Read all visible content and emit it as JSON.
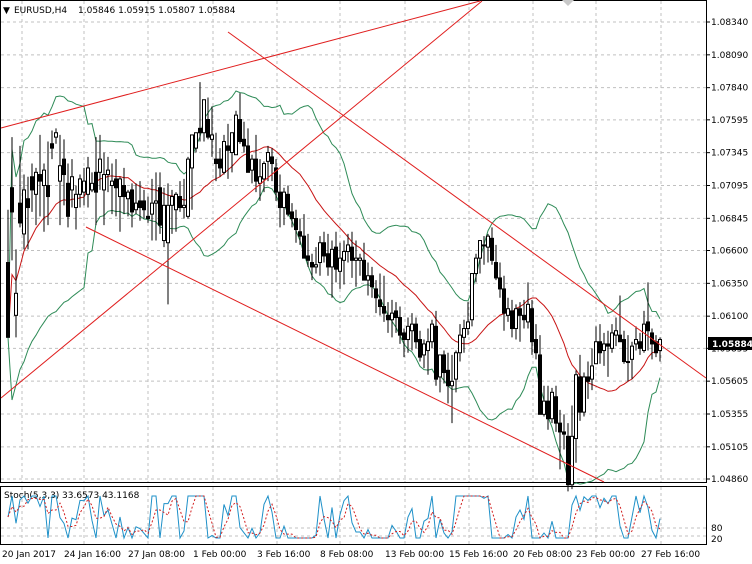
{
  "header": {
    "symbol_timeframe": "EURUSD,H4",
    "ohlc": "1.05846 1.05915 1.05807 1.05884"
  },
  "indicator": {
    "label": "Stoch(5,3,3)",
    "values": "33.6573 43.1168",
    "levels": [
      "80",
      "20"
    ]
  },
  "price_axis": {
    "labels": [
      "1.08340",
      "1.08090",
      "1.07840",
      "1.07595",
      "1.07345",
      "1.07095",
      "1.06845",
      "1.06600",
      "1.06350",
      "1.06100",
      "1.05855",
      "1.05605",
      "1.05355",
      "1.05105",
      "1.04860"
    ],
    "current_price": "1.05884"
  },
  "time_axis": {
    "labels": [
      "20 Jan 2017",
      "24 Jan 16:00",
      "27 Jan 08:00",
      "1 Feb 00:00",
      "3 Feb 16:00",
      "8 Feb 08:00",
      "13 Feb 00:00",
      "15 Feb 16:00",
      "20 Feb 08:00",
      "23 Feb 00:00",
      "27 Feb 16:00"
    ]
  },
  "colors": {
    "background": "#ffffff",
    "grid": "#c0c0c0",
    "candle": "#000000",
    "bollinger": "#2e8b57",
    "moving_average": "#c81414",
    "channel": "#e01e1e",
    "stoch_main": "#1e90c8",
    "stoch_signal": "#d21e1e",
    "price_badge": "#000000"
  },
  "chart_data": {
    "type": "candlestick",
    "symbol": "EURUSD",
    "timeframe": "H4",
    "ylim": [
      1.0484,
      1.0846
    ],
    "price_guides": {
      "candle_rows": [
        [
          0,
          39,
          63,
          9,
          5
        ],
        [
          4,
          73,
          96,
          40,
          62
        ],
        [
          8,
          15,
          45,
          5,
          25
        ],
        [
          12,
          66,
          92,
          55,
          57
        ],
        [
          16,
          52,
          79,
          45,
          72
        ],
        [
          20,
          68,
          78,
          45,
          64
        ],
        [
          24,
          78,
          84,
          62,
          72
        ],
        [
          28,
          70,
          82,
          56,
          80
        ],
        [
          32,
          79,
          97,
          60,
          76
        ],
        [
          36,
          74,
          84,
          53,
          81
        ],
        [
          40,
          74,
          94,
          56,
          69
        ],
        [
          44,
          93,
          99,
          86,
          91
        ],
        [
          48,
          96,
          100,
          93,
          98
        ],
        [
          52,
          76,
          97,
          56,
          83
        ],
        [
          56,
          86,
          95,
          65,
          79
        ],
        [
          60,
          75,
          84,
          55,
          60
        ],
        [
          64,
          72,
          86,
          64,
          78
        ],
        [
          68,
          64,
          74,
          54,
          70
        ],
        [
          72,
          70,
          79,
          64,
          77
        ],
        [
          76,
          71,
          82,
          65,
          76
        ],
        [
          80,
          70,
          87,
          64,
          82
        ],
        [
          84,
          72,
          80,
          71,
          75
        ],
        [
          88,
          80,
          96,
          56,
          71
        ],
        [
          92,
          80,
          97,
          72,
          86
        ],
        [
          96,
          72,
          89,
          56,
          79
        ],
        [
          100,
          79,
          87,
          71,
          81
        ],
        [
          104,
          74,
          84,
          61,
          76
        ],
        [
          108,
          77,
          86,
          60,
          73
        ],
        [
          112,
          69,
          78,
          53,
          77
        ],
        [
          116,
          74,
          82,
          61,
          69
        ],
        [
          120,
          68,
          72,
          60,
          71
        ],
        [
          124,
          72,
          75,
          55,
          62
        ],
        [
          128,
          63,
          75,
          61,
          66
        ],
        [
          132,
          67,
          76,
          58,
          64
        ],
        [
          136,
          67,
          72,
          59,
          63
        ],
        [
          140,
          60,
          69,
          57,
          59
        ],
        [
          144,
          61,
          77,
          49,
          66
        ],
        [
          148,
          66,
          80,
          49,
          67
        ],
        [
          152,
          73,
          80,
          52,
          56
        ],
        [
          156,
          49,
          73,
          46,
          65
        ],
        [
          160,
          48,
          75,
          20,
          65
        ],
        [
          164,
          65,
          72,
          52,
          69
        ],
        [
          168,
          63,
          71,
          53,
          70
        ],
        [
          172,
          69,
          76,
          62,
          64
        ],
        [
          176,
          64,
          77,
          59,
          65
        ],
        [
          180,
          60,
          87,
          59,
          86
        ],
        [
          184,
          82,
          92,
          63,
          97
        ],
        [
          188,
          91,
          94,
          89,
          98
        ],
        [
          192,
          100,
          121,
          94,
          98
        ],
        [
          196,
          98,
          110,
          94,
          113
        ],
        [
          200,
          104,
          114,
          95,
          96
        ],
        [
          204,
          95,
          110,
          87,
          97
        ],
        [
          208,
          86,
          98,
          76,
          84
        ],
        [
          212,
          86,
          91,
          78,
          82
        ],
        [
          216,
          80,
          97,
          79,
          94
        ],
        [
          220,
          92,
          102,
          77,
          90
        ],
        [
          224,
          89,
          94,
          80,
          98
        ],
        [
          228,
          88,
          108,
          90,
          106
        ],
        [
          232,
          104,
          116,
          93,
          94
        ],
        [
          236,
          95,
          103,
          89,
          92
        ],
        [
          240,
          92,
          100,
          81,
          80
        ],
        [
          244,
          81,
          88,
          75,
          86
        ],
        [
          248,
          86,
          97,
          71,
          76
        ],
        [
          252,
          75,
          86,
          67,
          78
        ],
        [
          256,
          77,
          85,
          71,
          84
        ],
        [
          260,
          85,
          92,
          76,
          89
        ],
        [
          264,
          87,
          91,
          76,
          84
        ],
        [
          268,
          82,
          86,
          67,
          71
        ],
        [
          272,
          71,
          79,
          55,
          64
        ],
        [
          276,
          64,
          73,
          56,
          71
        ],
        [
          280,
          70,
          74,
          60,
          61
        ],
        [
          284,
          62,
          66,
          55,
          59
        ],
        [
          288,
          59,
          63,
          48,
          54
        ],
        [
          292,
          53,
          59,
          47,
          51
        ],
        [
          296,
          51,
          61,
          42,
          41
        ],
        [
          300,
          42,
          52,
          37,
          40
        ],
        [
          304,
          39,
          43,
          31,
          37
        ],
        [
          308,
          37,
          46,
          34,
          38
        ],
        [
          312,
          39,
          51,
          33,
          48
        ],
        [
          316,
          48,
          53,
          39,
          42
        ],
        [
          320,
          43,
          52,
          33,
          37
        ],
        [
          324,
          37,
          49,
          23,
          45
        ],
        [
          328,
          46,
          53,
          30,
          36
        ],
        [
          332,
          35,
          48,
          27,
          41
        ],
        [
          336,
          40,
          49,
          29,
          44
        ],
        [
          340,
          44,
          52,
          39,
          47
        ],
        [
          344,
          46,
          53,
          32,
          40
        ],
        [
          348,
          40,
          49,
          28,
          41
        ],
        [
          352,
          40,
          43,
          33,
          41
        ],
        [
          356,
          40,
          48,
          31,
          31
        ],
        [
          360,
          31,
          39,
          24,
          33
        ],
        [
          364,
          33,
          37,
          23,
          28
        ],
        [
          368,
          27,
          31,
          16,
          23
        ],
        [
          372,
          22,
          34,
          15,
          19
        ],
        [
          376,
          19,
          33,
          12,
          16
        ],
        [
          380,
          15,
          21,
          7,
          13
        ],
        [
          384,
          13,
          22,
          5,
          16
        ],
        [
          388,
          17,
          21,
          7,
          14
        ],
        [
          392,
          14,
          19,
          2,
          6
        ],
        [
          396,
          7,
          9,
          -4,
          4
        ],
        [
          400,
          4,
          14,
          -2,
          10
        ],
        [
          404,
          8,
          16,
          -1,
          11
        ],
        [
          408,
          11,
          14,
          0,
          3
        ],
        [
          412,
          4,
          8,
          -6,
          -4
        ],
        [
          416,
          -3,
          4,
          -9,
          2
        ],
        [
          420,
          -1,
          9,
          -12,
          3
        ],
        [
          424,
          3,
          13,
          0,
          11
        ],
        [
          428,
          10,
          17,
          -17,
          -14
        ],
        [
          432,
          -13,
          -3,
          -20,
          -3
        ],
        [
          436,
          -3,
          -1,
          -16,
          -11
        ],
        [
          440,
          -10,
          -2,
          -25,
          -17
        ],
        [
          444,
          -17,
          -3,
          -34,
          -15
        ],
        [
          448,
          -14,
          -1,
          -20,
          -2
        ],
        [
          452,
          -2,
          11,
          -6,
          6
        ],
        [
          456,
          5,
          13,
          -2,
          9
        ],
        [
          460,
          9,
          21,
          6,
          12
        ],
        [
          464,
          13,
          29,
          10,
          34
        ],
        [
          468,
          34,
          43,
          30,
          41
        ],
        [
          472,
          41,
          48,
          34,
          49
        ],
        [
          476,
          47,
          51,
          38,
          47
        ],
        [
          480,
          46,
          52,
          39,
          51
        ],
        [
          484,
          50,
          55,
          38,
          40
        ],
        [
          488,
          39,
          47,
          31,
          32
        ],
        [
          492,
          32,
          39,
          23,
          27
        ],
        [
          496,
          27,
          33,
          8,
          16
        ],
        [
          500,
          15,
          23,
          12,
          18
        ],
        [
          504,
          17,
          22,
          5,
          9
        ],
        [
          508,
          9,
          20,
          4,
          18
        ],
        [
          512,
          18,
          21,
          3,
          15
        ],
        [
          516,
          15,
          22,
          9,
          13
        ],
        [
          520,
          12,
          30,
          9,
          20
        ],
        [
          524,
          18,
          22,
          -3,
          3
        ],
        [
          528,
          4,
          11,
          -5,
          -2
        ],
        [
          532,
          -3,
          6,
          -22,
          -30
        ],
        [
          536,
          -30,
          -17,
          -31,
          -24
        ],
        [
          540,
          -24,
          -17,
          -37,
          -32
        ],
        [
          544,
          -32,
          -18,
          -34,
          -20
        ],
        [
          548,
          -22,
          -17,
          -38,
          -34
        ],
        [
          552,
          -34,
          -28,
          -55,
          -38
        ],
        [
          556,
          -38,
          -30,
          -46,
          -39
        ],
        [
          560,
          -40,
          -34,
          -65,
          -62
        ],
        [
          564,
          -62,
          -26,
          -64,
          -40
        ],
        [
          568,
          -41,
          -10,
          -52,
          -12
        ],
        [
          572,
          -13,
          -3,
          -33,
          -29
        ],
        [
          576,
          -29,
          -11,
          -31,
          -13
        ],
        [
          580,
          -13,
          -6,
          -23,
          -15
        ],
        [
          584,
          -14,
          0,
          -19,
          -8
        ],
        [
          588,
          -7,
          10,
          -7,
          3
        ],
        [
          592,
          3,
          11,
          -7,
          -2
        ],
        [
          596,
          -1,
          7,
          -8,
          2
        ],
        [
          600,
          2,
          8,
          -13,
          1
        ],
        [
          604,
          0,
          11,
          -2,
          7
        ],
        [
          608,
          6,
          14,
          1,
          8
        ],
        [
          612,
          6,
          24,
          3,
          3
        ],
        [
          616,
          4,
          8,
          -7,
          -6
        ],
        [
          620,
          -6,
          6,
          -15,
          -6
        ],
        [
          624,
          -5,
          3,
          -14,
          1
        ],
        [
          628,
          2,
          10,
          -1,
          4
        ],
        [
          632,
          3,
          7,
          -3,
          0
        ],
        [
          636,
          -1,
          17,
          -2,
          11
        ],
        [
          640,
          12,
          30,
          -1,
          8
        ],
        [
          644,
          7,
          9,
          -5,
          2
        ],
        [
          648,
          3,
          6,
          -4,
          -2
        ],
        [
          652,
          -1,
          5,
          -6,
          4
        ]
      ]
    }
  }
}
